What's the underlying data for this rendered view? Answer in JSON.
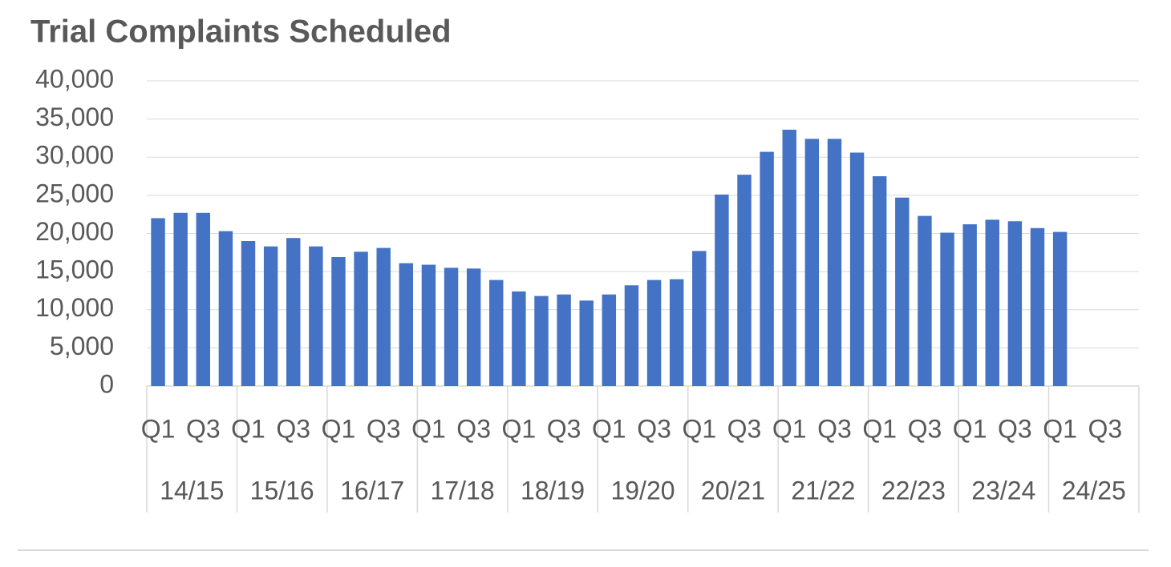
{
  "chart_data": {
    "type": "bar",
    "title": "Trial Complaints Scheduled",
    "categories": [
      "Q1",
      null,
      "Q3",
      null,
      "Q1",
      null,
      "Q3",
      null,
      "Q1",
      null,
      "Q3",
      null,
      "Q1",
      null,
      "Q3",
      null,
      "Q1",
      null,
      "Q3",
      null,
      "Q1",
      null,
      "Q3",
      null,
      "Q1",
      null,
      "Q3",
      null,
      "Q1",
      null,
      "Q3",
      null,
      "Q1",
      null,
      "Q3",
      null,
      "Q1",
      null,
      "Q3",
      null,
      "Q1",
      null,
      "Q3",
      null
    ],
    "groups": [
      "14/15",
      "15/16",
      "16/17",
      "17/18",
      "18/19",
      "19/20",
      "20/21",
      "21/22",
      "22/23",
      "23/24",
      "24/25"
    ],
    "values": [
      22000,
      22700,
      22700,
      20300,
      19000,
      18300,
      19400,
      18300,
      16900,
      17600,
      18100,
      16100,
      15900,
      15500,
      15400,
      13900,
      12400,
      11800,
      12000,
      11200,
      12000,
      13200,
      13900,
      14000,
      17700,
      25100,
      27700,
      30700,
      33600,
      32400,
      32400,
      30600,
      27500,
      24700,
      22300,
      20100,
      21200,
      21800,
      21600,
      20700,
      20200,
      null,
      null,
      null
    ],
    "color": "#4472c4",
    "ylim": [
      0,
      40000
    ],
    "yticks": [
      0,
      {
        "value": 5000,
        "label": "5,000"
      },
      {
        "value": 10000,
        "label": "10,000"
      },
      {
        "value": 15000,
        "label": "15,000"
      },
      {
        "value": 20000,
        "label": "20,000"
      },
      {
        "value": 25000,
        "label": "25,000"
      },
      {
        "value": 30000,
        "label": "30,000"
      },
      {
        "value": 35000,
        "label": "35,000"
      },
      {
        "value": 40000,
        "label": "40,000"
      }
    ],
    "grid": true
  }
}
